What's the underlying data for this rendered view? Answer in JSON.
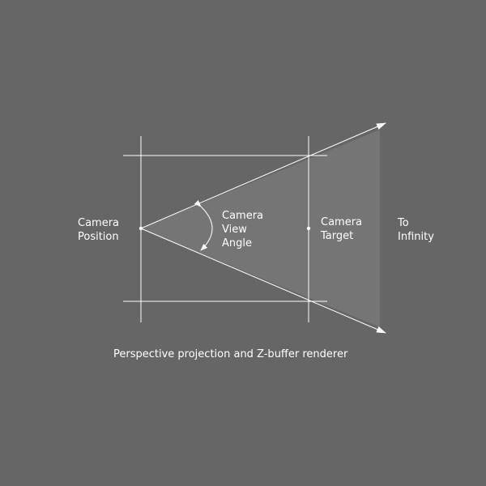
{
  "colors": {
    "background": "#666666",
    "frustum": "#757575",
    "line": "#ffffff",
    "text": "#ffffff"
  },
  "labels": {
    "camera_position": [
      "Camera",
      "Position"
    ],
    "camera_view_angle": [
      "Camera",
      "View",
      "Angle"
    ],
    "camera_target": [
      "Camera",
      "Target"
    ],
    "to_infinity": [
      "To",
      "Infinity"
    ]
  },
  "caption": "Perspective projection and Z-buffer renderer"
}
